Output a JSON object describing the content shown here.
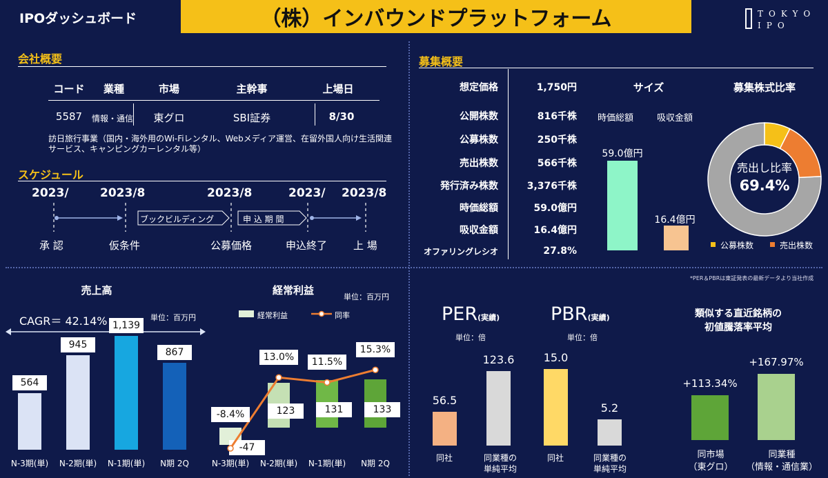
{
  "header": {
    "dashboard_title": "IPOダッシュボード",
    "company_name": "（株）インバウンドプラットフォーム",
    "logo_line1": "TOKYO",
    "logo_line2": "IPO"
  },
  "company": {
    "section_title": "会社概要",
    "headers": [
      "コード",
      "業種",
      "市場",
      "主幹事",
      "上場日"
    ],
    "code": "5587",
    "industry": "情報・通信",
    "market": "東グロ",
    "lead_manager": "SBI証券",
    "listing_date": "8/30",
    "description_line1": "訪日旅行事業（国内・海外用のWi-Fiレンタル、Webメディア運営、在留外国人向け生活関連",
    "description_line2": "サービス、キャンピングカーレンタル等）"
  },
  "schedule": {
    "section_title": "スケジュール",
    "dates": [
      "2023/",
      "2023/8",
      "2023/8",
      "2023/",
      "2023/8"
    ],
    "labels": [
      "承 認",
      "仮条件",
      "公募価格",
      "申込終了",
      "上 場"
    ],
    "phase1": "ブックビルディング",
    "phase2": "申 込 期 間"
  },
  "offering": {
    "section_title": "募集概要",
    "rows": [
      {
        "label": "想定価格",
        "value": "1,750円"
      },
      {
        "label": "公開株数",
        "value": "816千株"
      },
      {
        "label": "公募株数",
        "value": "250千株"
      },
      {
        "label": "売出株数",
        "value": "566千株"
      },
      {
        "label": "発行済み株数",
        "value": "3,376千株"
      },
      {
        "label": "時価総額",
        "value": "59.0億円"
      },
      {
        "label": "吸収金額",
        "value": "16.4億円"
      },
      {
        "label": "オファリングレシオ",
        "value": "27.8%"
      }
    ],
    "size_title": "サイズ",
    "size_labels": [
      "時価総額",
      "吸収金額"
    ],
    "size_values": [
      "59.0億円",
      "16.4億円"
    ],
    "ratio_title": "募集株式比率",
    "ratio_center_label": "売出し比率",
    "ratio_center_value": "69.4%",
    "legend": [
      "公募株数",
      "売出株数"
    ],
    "colors": {
      "size_market_cap": "#8ef5c8",
      "size_absorb": "#f7c491",
      "donut_gray": "#a6a6a6",
      "donut_yellow": "#f5c018",
      "donut_orange": "#ed7d31"
    }
  },
  "footnote": "*PER＆PBRは東証発表の最新データより当社作成",
  "sales": {
    "title": "売上高",
    "cagr": "CAGR＝ 42.14%",
    "unit": "単位：百万円"
  },
  "profit": {
    "title": "経常利益",
    "unit": "単位：百万円",
    "legend_bar": "経常利益",
    "legend_line": "同率"
  },
  "per": {
    "title": "PER",
    "title_suffix": "(実績)",
    "unit": "単位：倍",
    "labels": [
      "同社",
      "同業種の",
      "単純平均"
    ]
  },
  "pbr": {
    "title": "PBR",
    "title_suffix": "(実績)",
    "unit": "単位：倍",
    "labels": [
      "同社",
      "同業種の",
      "単純平均"
    ]
  },
  "similar": {
    "title_line1": "類似する直近銘柄の",
    "title_line2": "初値騰落率平均",
    "label1_line1": "同市場",
    "label1_line2": "（東グロ）",
    "label2_line1": "同業種",
    "label2_line2": "（情報・通信業）"
  },
  "chart_data": [
    {
      "type": "bar",
      "title": "売上高",
      "categories": [
        "N-3期(単)",
        "N-2期(単)",
        "N-1期(単)",
        "N期 2Q"
      ],
      "values": [
        564,
        945,
        1139,
        867
      ],
      "value_labels": [
        "564",
        "945",
        "1,139",
        "867"
      ],
      "colors": [
        "#dbe3f5",
        "#dbe3f5",
        "#17a7e0",
        "#1461b8"
      ]
    },
    {
      "type": "bar",
      "title": "経常利益",
      "categories": [
        "N-3期(単)",
        "N-2期(単)",
        "N-1期(単)",
        "N期 2Q"
      ],
      "series": [
        {
          "name": "経常利益",
          "values": [
            -47,
            123,
            131,
            133
          ],
          "value_labels": [
            "-47",
            "123",
            "131",
            "133"
          ]
        },
        {
          "name": "同率",
          "values": [
            -8.4,
            13.0,
            11.5,
            15.3
          ],
          "value_labels": [
            "-8.4%",
            "13.0%",
            "11.5%",
            "15.3%"
          ]
        }
      ],
      "colors": [
        "#e2f0d9",
        "#c5e0b4",
        "#70b847",
        "#5ea538"
      ],
      "line_color": "#ed7d31"
    },
    {
      "type": "bar",
      "title": "PER",
      "categories": [
        "同社",
        "同業種の単純平均"
      ],
      "values": [
        56.5,
        123.6
      ],
      "value_labels": [
        "56.5",
        "123.6"
      ],
      "colors": [
        "#f4b183",
        "#d9d9d9"
      ]
    },
    {
      "type": "bar",
      "title": "PBR",
      "categories": [
        "同社",
        "同業種の単純平均"
      ],
      "values": [
        15.0,
        5.2
      ],
      "value_labels": [
        "15.0",
        "5.2"
      ],
      "colors": [
        "#ffd966",
        "#d9d9d9"
      ]
    },
    {
      "type": "bar",
      "title": "類似する直近銘柄の初値騰落率平均",
      "categories": [
        "同市場（東グロ）",
        "同業種（情報・通信業）"
      ],
      "values": [
        113.34,
        167.97
      ],
      "value_labels": [
        "+113.34%",
        "+167.97%"
      ],
      "colors": [
        "#5ea538",
        "#a9d18e"
      ]
    },
    {
      "type": "pie",
      "title": "募集株式比率",
      "categories": [
        "公募株数",
        "売出株数"
      ],
      "values": [
        250,
        566
      ]
    }
  ]
}
